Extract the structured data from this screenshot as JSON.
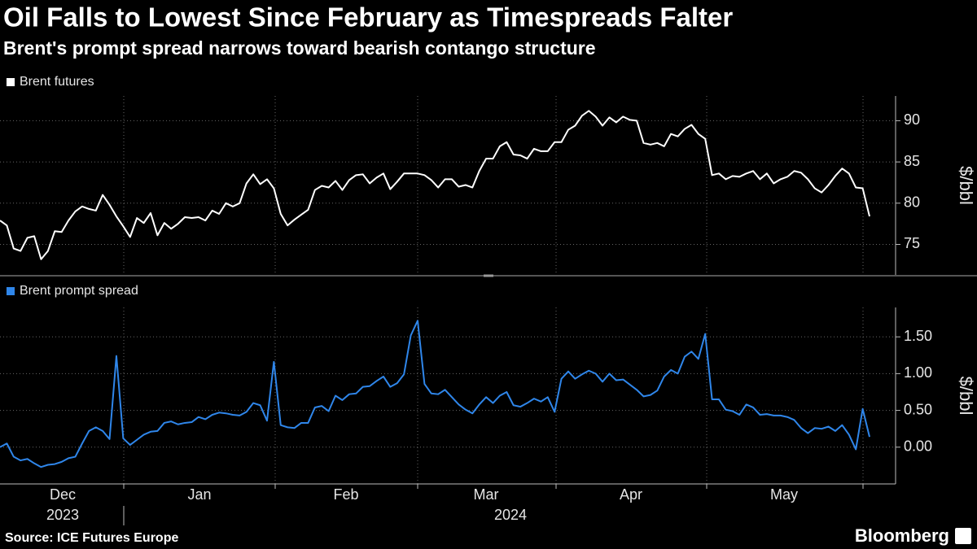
{
  "title": "Oil Falls to Lowest Since February as Timespreads Falter",
  "subtitle": "Brent's prompt spread narrows toward bearish contango structure",
  "source": "Source: ICE Futures Europe",
  "brand": "Bloomberg",
  "x_axis": {
    "months": [
      "Dec",
      "Jan",
      "Feb",
      "Mar",
      "Apr",
      "May"
    ],
    "years": [
      "2023",
      "2024"
    ]
  },
  "chart_data": [
    {
      "type": "line",
      "y_label": "$/bbl",
      "ylim": [
        71.3,
        93
      ],
      "yticks": [
        75,
        80,
        85,
        90
      ],
      "grid": true,
      "series": [
        {
          "name": "Brent futures",
          "color": "#ffffff",
          "values": [
            77.9,
            77.3,
            74.5,
            74.2,
            75.8,
            76.0,
            73.2,
            74.2,
            76.6,
            76.5,
            77.9,
            79.0,
            79.6,
            79.3,
            79.1,
            81.0,
            79.8,
            78.4,
            77.2,
            75.9,
            78.2,
            77.6,
            78.8,
            76.1,
            77.6,
            76.9,
            77.5,
            78.3,
            78.2,
            78.3,
            77.9,
            79.1,
            78.7,
            80.0,
            79.6,
            80.0,
            82.4,
            83.5,
            82.3,
            82.9,
            81.8,
            78.7,
            77.3,
            78.0,
            78.6,
            79.2,
            81.6,
            82.1,
            81.9,
            82.7,
            81.6,
            82.8,
            83.4,
            83.5,
            82.4,
            83.1,
            83.6,
            81.7,
            82.6,
            83.6,
            83.6,
            83.6,
            83.4,
            82.8,
            81.9,
            82.9,
            82.9,
            82.0,
            82.2,
            81.9,
            83.9,
            85.4,
            85.4,
            86.9,
            87.4,
            85.9,
            85.8,
            85.4,
            86.6,
            86.3,
            86.3,
            87.4,
            87.4,
            88.9,
            89.4,
            90.6,
            91.2,
            90.5,
            89.4,
            90.4,
            89.8,
            90.5,
            90.1,
            90.0,
            87.3,
            87.1,
            87.3,
            86.9,
            88.4,
            88.1,
            89.0,
            89.5,
            88.4,
            87.8,
            83.4,
            83.6,
            82.9,
            83.3,
            83.2,
            83.6,
            83.9,
            82.9,
            83.6,
            82.4,
            82.9,
            83.2,
            83.9,
            83.7,
            82.9,
            81.8,
            81.3,
            82.2,
            83.3,
            84.2,
            83.6,
            81.9,
            81.8,
            78.4
          ]
        }
      ]
    },
    {
      "type": "line",
      "y_label": "$/bbl",
      "ylim": [
        -0.5,
        1.9
      ],
      "yticks": [
        {
          "value": 0,
          "label": "0.00"
        },
        {
          "value": 0.5,
          "label": "0.50"
        },
        {
          "value": 1,
          "label": "1.00"
        },
        {
          "value": 1.5,
          "label": "1.50"
        }
      ],
      "grid": true,
      "series": [
        {
          "name": "Brent prompt spread",
          "color": "#2f86ea",
          "values": [
            0.0,
            0.05,
            -0.13,
            -0.18,
            -0.16,
            -0.22,
            -0.27,
            -0.24,
            -0.23,
            -0.2,
            -0.15,
            -0.13,
            0.05,
            0.22,
            0.27,
            0.22,
            0.11,
            1.24,
            0.12,
            0.03,
            0.1,
            0.17,
            0.21,
            0.22,
            0.33,
            0.35,
            0.31,
            0.33,
            0.34,
            0.41,
            0.38,
            0.44,
            0.47,
            0.46,
            0.44,
            0.43,
            0.48,
            0.6,
            0.57,
            0.36,
            1.16,
            0.3,
            0.27,
            0.26,
            0.33,
            0.33,
            0.54,
            0.56,
            0.49,
            0.7,
            0.64,
            0.72,
            0.73,
            0.82,
            0.83,
            0.9,
            0.96,
            0.82,
            0.87,
            0.99,
            1.52,
            1.72,
            0.86,
            0.73,
            0.72,
            0.78,
            0.68,
            0.58,
            0.51,
            0.46,
            0.58,
            0.68,
            0.6,
            0.7,
            0.75,
            0.57,
            0.55,
            0.6,
            0.66,
            0.62,
            0.68,
            0.48,
            0.93,
            1.03,
            0.93,
            0.99,
            1.04,
            1.0,
            0.89,
            1.0,
            0.91,
            0.92,
            0.85,
            0.78,
            0.69,
            0.71,
            0.77,
            0.96,
            1.05,
            1.0,
            1.23,
            1.3,
            1.2,
            1.54,
            0.65,
            0.65,
            0.51,
            0.49,
            0.44,
            0.58,
            0.54,
            0.44,
            0.45,
            0.43,
            0.43,
            0.41,
            0.37,
            0.26,
            0.19,
            0.26,
            0.25,
            0.28,
            0.22,
            0.3,
            0.17,
            -0.03,
            0.52,
            0.14
          ]
        }
      ]
    }
  ]
}
